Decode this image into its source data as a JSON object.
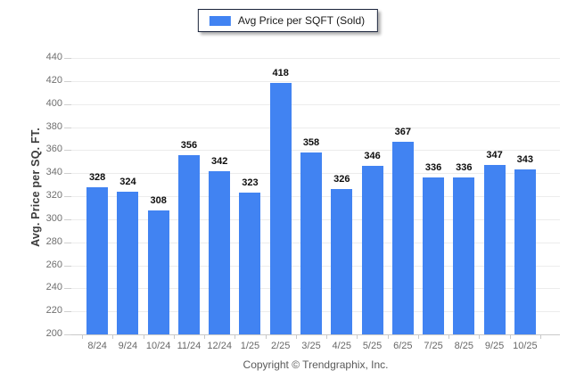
{
  "legend": {
    "label": "Avg Price per SQFT (Sold)",
    "swatch_icon": "series-swatch-icon",
    "swatch_color": "#4183f2"
  },
  "footer": {
    "copyright": "Copyright © Trendgraphix, Inc."
  },
  "colors": {
    "bar": "#4183f2",
    "gridline": "#ececec",
    "axis": "#c9c9c9",
    "value_label": "#0d0d0d",
    "tick_label": "#6f6f6f",
    "legend_border": "#19233a"
  },
  "chart_data": {
    "type": "bar",
    "title": "",
    "xlabel": "",
    "ylabel": "Avg. Price per SQ. FT.",
    "series_name": "Avg Price per SQFT (Sold)",
    "categories": [
      "8/24",
      "9/24",
      "10/24",
      "11/24",
      "12/24",
      "1/25",
      "2/25",
      "3/25",
      "4/25",
      "5/25",
      "6/25",
      "7/25",
      "8/25",
      "9/25",
      "10/25"
    ],
    "values": [
      328,
      324,
      308,
      356,
      342,
      323,
      418,
      358,
      326,
      346,
      367,
      336,
      336,
      347,
      343
    ],
    "ylim": [
      200,
      440
    ],
    "ytick_step": 20,
    "bar_color": "#4183f2",
    "grid": "horizontal",
    "legend_position": "top-center",
    "value_labels": "above-bars"
  }
}
